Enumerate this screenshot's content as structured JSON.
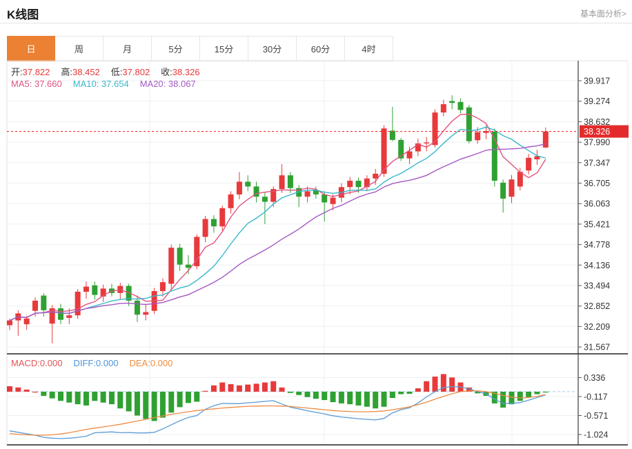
{
  "header": {
    "title": "K线图",
    "link_label": "基本面分析>"
  },
  "tabs": {
    "items": [
      "日",
      "周",
      "月",
      "5分",
      "15分",
      "30分",
      "60分",
      "4时"
    ],
    "active_index": 0
  },
  "ohlc_bar": {
    "open_label": "开:",
    "open": "37.822",
    "high_label": "高:",
    "high": "38.452",
    "low_label": "低:",
    "low": "37.802",
    "close_label": "收:",
    "close": "38.326"
  },
  "ma_bar": {
    "ma5_label": "MA5:",
    "ma5": "37.660",
    "ma10_label": "MA10:",
    "ma10": "37.654",
    "ma20_label": "MA20:",
    "ma20": "38.067"
  },
  "macd_bar": {
    "macd_label": "MACD:",
    "macd": "0.000",
    "diff_label": "DIFF:",
    "diff": "0.000",
    "dea_label": "DEA:",
    "dea": "0.000"
  },
  "price_axis": {
    "labels": [
      "39.917",
      "39.274",
      "38.632",
      "37.990",
      "37.347",
      "36.705",
      "36.063",
      "35.421",
      "34.778",
      "34.136",
      "33.494",
      "32.852",
      "32.209",
      "31.567"
    ],
    "current_price_label": "38.326"
  },
  "macd_axis": {
    "labels": [
      "0.336",
      "-0.117",
      "-0.571",
      "-1.024"
    ]
  },
  "colors": {
    "up": "#e8393b",
    "down": "#2fa132",
    "ma5": "#e0537f",
    "ma10": "#36b8c9",
    "ma20": "#a557c4",
    "diff_line": "#5b9bd5",
    "dea_line": "#ed8b43",
    "price_line": "#f42c2c",
    "price_badge": "#e32b2b",
    "tab_active": "#ec8033",
    "grid": "#edeff2",
    "macd_text": "#e05555",
    "diff_text": "#4f93d8",
    "dea_text": "#f08c3d",
    "value_red": "#e8393b",
    "zero_dash": "#a9cbe9"
  },
  "chart_data": {
    "type": "candlestick+macd",
    "title": "K线图",
    "price_axis_ticks": [
      39.917,
      39.274,
      38.632,
      37.99,
      37.347,
      36.705,
      36.063,
      35.421,
      34.778,
      34.136,
      33.494,
      32.852,
      32.209,
      31.567
    ],
    "current_price": 38.326,
    "ma_periods": [
      5,
      10,
      20
    ],
    "candles_ohlc": [
      [
        32.25,
        32.45,
        32.1,
        32.4
      ],
      [
        32.4,
        32.72,
        31.92,
        32.62
      ],
      [
        32.28,
        32.55,
        32.1,
        32.46
      ],
      [
        32.7,
        33.12,
        32.52,
        33.02
      ],
      [
        33.18,
        33.25,
        32.52,
        32.72
      ],
      [
        32.3,
        32.88,
        31.68,
        32.78
      ],
      [
        32.78,
        32.92,
        32.28,
        32.42
      ],
      [
        32.48,
        32.78,
        32.28,
        32.56
      ],
      [
        32.56,
        33.38,
        32.45,
        33.3
      ],
      [
        33.3,
        33.62,
        33.08,
        33.46
      ],
      [
        33.5,
        33.62,
        33.05,
        33.2
      ],
      [
        33.15,
        33.52,
        32.98,
        33.4
      ],
      [
        33.4,
        33.55,
        33.15,
        33.26
      ],
      [
        33.26,
        33.58,
        33.05,
        33.48
      ],
      [
        33.48,
        33.55,
        32.85,
        33.02
      ],
      [
        33.02,
        33.18,
        32.35,
        32.58
      ],
      [
        32.58,
        32.92,
        32.4,
        32.66
      ],
      [
        32.7,
        33.42,
        32.6,
        33.32
      ],
      [
        33.32,
        33.72,
        33.15,
        33.6
      ],
      [
        33.55,
        34.78,
        33.38,
        34.68
      ],
      [
        34.68,
        34.8,
        33.95,
        34.15
      ],
      [
        34.15,
        34.45,
        33.85,
        34.05
      ],
      [
        34.1,
        35.1,
        34.0,
        35.02
      ],
      [
        35.02,
        35.68,
        34.85,
        35.58
      ],
      [
        35.58,
        35.7,
        35.15,
        35.35
      ],
      [
        35.35,
        36.0,
        35.2,
        35.92
      ],
      [
        35.92,
        36.45,
        35.75,
        36.35
      ],
      [
        36.35,
        37.05,
        36.2,
        36.75
      ],
      [
        36.75,
        36.95,
        36.45,
        36.6
      ],
      [
        36.6,
        36.75,
        36.1,
        36.28
      ],
      [
        36.28,
        36.4,
        35.42,
        36.12
      ],
      [
        36.12,
        36.6,
        35.95,
        36.52
      ],
      [
        36.52,
        37.3,
        36.4,
        36.95
      ],
      [
        36.95,
        37.05,
        36.4,
        36.55
      ],
      [
        36.55,
        36.65,
        35.95,
        36.28
      ],
      [
        36.28,
        36.6,
        36.1,
        36.45
      ],
      [
        36.48,
        36.6,
        36.22,
        36.35
      ],
      [
        36.35,
        36.45,
        35.5,
        36.1
      ],
      [
        36.05,
        36.35,
        35.85,
        36.25
      ],
      [
        36.25,
        36.7,
        36.1,
        36.58
      ],
      [
        36.58,
        36.9,
        36.35,
        36.78
      ],
      [
        36.78,
        36.88,
        36.4,
        36.58
      ],
      [
        36.58,
        36.95,
        36.45,
        36.85
      ],
      [
        36.85,
        37.15,
        36.65,
        37.0
      ],
      [
        37.0,
        38.52,
        36.9,
        38.42
      ],
      [
        38.35,
        39.1,
        38.02,
        38.06
      ],
      [
        38.06,
        38.12,
        37.4,
        37.48
      ],
      [
        37.48,
        37.85,
        37.3,
        37.7
      ],
      [
        37.7,
        38.1,
        37.55,
        37.95
      ],
      [
        37.95,
        38.15,
        37.7,
        37.98
      ],
      [
        37.9,
        39.02,
        37.82,
        38.92
      ],
      [
        38.92,
        39.32,
        38.8,
        39.18
      ],
      [
        39.28,
        39.46,
        39.02,
        39.22
      ],
      [
        39.25,
        39.36,
        38.9,
        39.0
      ],
      [
        39.08,
        39.16,
        37.95,
        38.02
      ],
      [
        38.05,
        38.46,
        37.94,
        38.3
      ],
      [
        38.28,
        38.52,
        38.08,
        38.34
      ],
      [
        38.32,
        38.42,
        36.6,
        36.78
      ],
      [
        36.72,
        36.82,
        35.78,
        36.22
      ],
      [
        36.28,
        36.96,
        36.08,
        36.82
      ],
      [
        36.6,
        37.18,
        36.48,
        37.06
      ],
      [
        37.1,
        37.62,
        36.98,
        37.5
      ],
      [
        37.45,
        37.75,
        37.28,
        37.55
      ],
      [
        37.822,
        38.452,
        37.802,
        38.326
      ]
    ],
    "macd": {
      "axis_ticks": [
        0.336,
        -0.117,
        -0.571,
        -1.024
      ],
      "hist": [
        0.13,
        0.1,
        0.05,
        0.0,
        -0.1,
        -0.16,
        -0.22,
        -0.26,
        -0.3,
        -0.33,
        -0.22,
        -0.26,
        -0.3,
        -0.4,
        -0.47,
        -0.57,
        -0.65,
        -0.7,
        -0.62,
        -0.5,
        -0.37,
        -0.27,
        -0.24,
        0.02,
        0.15,
        0.22,
        0.18,
        0.15,
        0.17,
        0.19,
        0.22,
        0.25,
        0.1,
        -0.03,
        -0.08,
        -0.13,
        -0.17,
        -0.2,
        -0.25,
        -0.28,
        -0.3,
        -0.33,
        -0.36,
        -0.4,
        -0.36,
        -0.15,
        -0.06,
        -0.05,
        0.08,
        0.25,
        0.36,
        0.42,
        0.34,
        0.22,
        0.1,
        -0.04,
        -0.1,
        -0.28,
        -0.38,
        -0.3,
        -0.22,
        -0.13,
        -0.06,
        -0.01
      ],
      "dea": [
        -1.0,
        -1.02,
        -1.03,
        -1.04,
        -1.04,
        -1.03,
        -1.01,
        -0.98,
        -0.94,
        -0.9,
        -0.87,
        -0.84,
        -0.81,
        -0.78,
        -0.74,
        -0.7,
        -0.66,
        -0.62,
        -0.58,
        -0.54,
        -0.51,
        -0.48,
        -0.45,
        -0.43,
        -0.41,
        -0.39,
        -0.375,
        -0.36,
        -0.35,
        -0.345,
        -0.34,
        -0.34,
        -0.345,
        -0.355,
        -0.37,
        -0.39,
        -0.41,
        -0.43,
        -0.45,
        -0.465,
        -0.475,
        -0.48,
        -0.48,
        -0.475,
        -0.46,
        -0.43,
        -0.4,
        -0.36,
        -0.31,
        -0.25,
        -0.18,
        -0.11,
        -0.05,
        0.0,
        0.02,
        0.02,
        0.0,
        -0.04,
        -0.09,
        -0.13,
        -0.15,
        -0.14,
        -0.11,
        -0.07
      ]
    }
  }
}
